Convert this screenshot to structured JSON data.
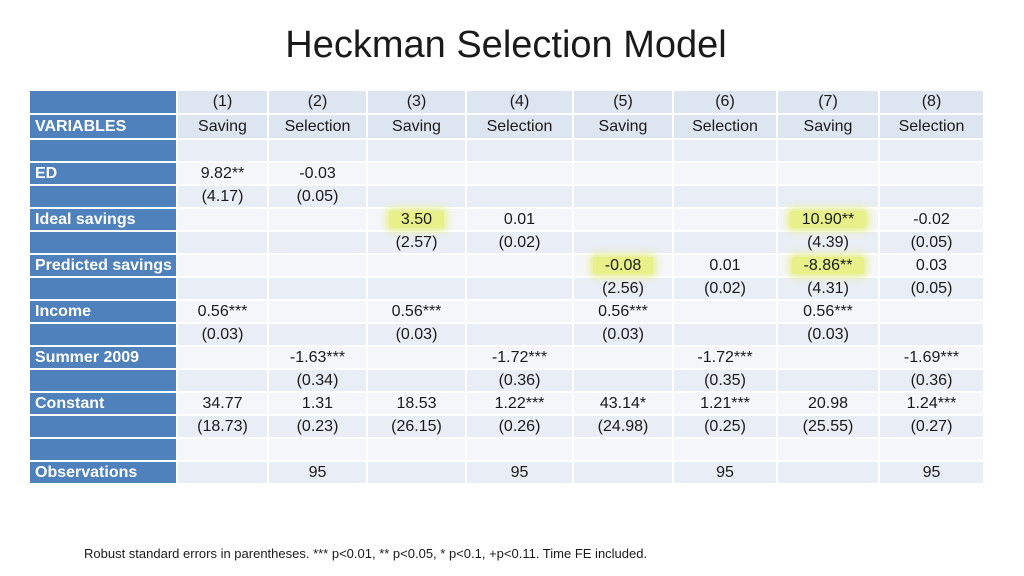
{
  "title": "Heckman Selection Model",
  "header": {
    "numbers": [
      "(1)",
      "(2)",
      "(3)",
      "(4)",
      "(5)",
      "(6)",
      "(7)",
      "(8)"
    ],
    "variables_label": "VARIABLES",
    "models": [
      "Saving",
      "Selection",
      "Saving",
      "Selection",
      "Saving",
      "Selection",
      "Saving",
      "Selection"
    ]
  },
  "rows": [
    {
      "label": "",
      "cells": [
        "",
        "",
        "",
        "",
        "",
        "",
        "",
        ""
      ]
    },
    {
      "label": "ED",
      "cells": [
        "9.82**",
        "-0.03",
        "",
        "",
        "",
        "",
        "",
        ""
      ]
    },
    {
      "label": "",
      "cells": [
        "(4.17)",
        "(0.05)",
        "",
        "",
        "",
        "",
        "",
        ""
      ]
    },
    {
      "label": "Ideal savings",
      "cells": [
        "",
        "",
        "3.50",
        "0.01",
        "",
        "",
        "10.90**",
        "-0.02"
      ]
    },
    {
      "label": "",
      "cells": [
        "",
        "",
        "(2.57)",
        "(0.02)",
        "",
        "",
        "(4.39)",
        "(0.05)"
      ]
    },
    {
      "label": "Predicted savings",
      "cells": [
        "",
        "",
        "",
        "",
        "-0.08",
        "0.01",
        "-8.86**",
        "0.03"
      ]
    },
    {
      "label": "",
      "cells": [
        "",
        "",
        "",
        "",
        "(2.56)",
        "(0.02)",
        "(4.31)",
        "(0.05)"
      ]
    },
    {
      "label": "Income",
      "cells": [
        "0.56***",
        "",
        "0.56***",
        "",
        "0.56***",
        "",
        "0.56***",
        ""
      ]
    },
    {
      "label": "",
      "cells": [
        "(0.03)",
        "",
        "(0.03)",
        "",
        "(0.03)",
        "",
        "(0.03)",
        ""
      ]
    },
    {
      "label": "Summer 2009",
      "cells": [
        "",
        "-1.63***",
        "",
        "-1.72***",
        "",
        "-1.72***",
        "",
        "-1.69***"
      ]
    },
    {
      "label": "",
      "cells": [
        "",
        "(0.34)",
        "",
        "(0.36)",
        "",
        "(0.35)",
        "",
        "(0.36)"
      ]
    },
    {
      "label": "Constant",
      "cells": [
        "34.77",
        "1.31",
        "18.53",
        "1.22***",
        "43.14*",
        "1.21***",
        "20.98",
        "1.24***"
      ]
    },
    {
      "label": "",
      "cells": [
        "(18.73)",
        "(0.23)",
        "(26.15)",
        "(0.26)",
        "(24.98)",
        "(0.25)",
        "(25.55)",
        "(0.27)"
      ]
    },
    {
      "label": "",
      "cells": [
        "",
        "",
        "",
        "",
        "",
        "",
        "",
        ""
      ]
    },
    {
      "label": "Observations",
      "cells": [
        "",
        "95",
        "",
        "95",
        "",
        "95",
        "",
        "95"
      ]
    }
  ],
  "highlight_color": "#e8f08a",
  "highlighted_values": [
    "3.50",
    "-0.08",
    "10.90**",
    "-8.86**"
  ],
  "note": "Robust standard errors in parentheses. *** p<0.01, ** p<0.05, * p<0.1, +p<0.11. Time FE included."
}
